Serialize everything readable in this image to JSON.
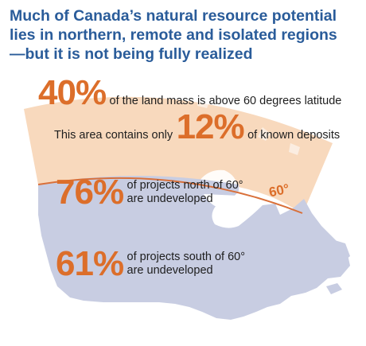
{
  "headline": {
    "line1": "Much of Canada’s natural resource potential",
    "line2": "lies in northern, remote and isolated regions",
    "line3": "—but it is not being fully realized"
  },
  "stats": {
    "land_mass": {
      "value": "40%",
      "text": "of the land mass is above 60 degrees latitude"
    },
    "deposits": {
      "prefix": "This area contains only",
      "value": "12%",
      "text": "of known deposits"
    },
    "north": {
      "value": "76%",
      "line1": "of projects north of 60°",
      "line2": "are undeveloped"
    },
    "south": {
      "value": "61%",
      "line1": "of projects south of 60°",
      "line2": "are undeveloped"
    }
  },
  "latitude_label": "60°",
  "colors": {
    "headline": "#2a5c9a",
    "accent_orange": "#dc6e2a",
    "north_region": "#f8d9bd",
    "south_region": "#c8cde2",
    "latitude_line": "#d9703a"
  }
}
